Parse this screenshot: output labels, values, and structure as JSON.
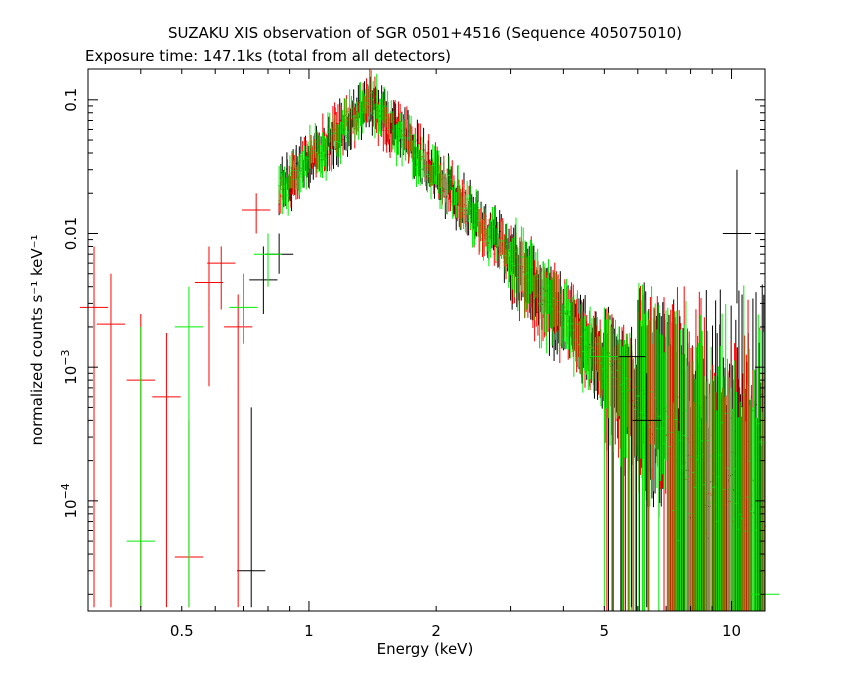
{
  "chart_data": {
    "type": "scatter",
    "title": "SUZAKU XIS observation of SGR 0501+4516 (Sequence 405075010)",
    "subtitle": "Exposure time: 147.1ks (total from all detectors)",
    "xlabel": "Energy (keV)",
    "ylabel": "normalized counts s⁻¹ keV⁻¹",
    "xscale": "log",
    "yscale": "log",
    "xlim": [
      0.3,
      12.0
    ],
    "ylim": [
      1.5e-05,
      0.17
    ],
    "grid": false,
    "legend": "none",
    "x_ticks": [
      {
        "value": 0.5,
        "label": "0.5"
      },
      {
        "value": 1,
        "label": "1"
      },
      {
        "value": 2,
        "label": "2"
      },
      {
        "value": 5,
        "label": "5"
      },
      {
        "value": 10,
        "label": "10"
      }
    ],
    "y_ticks": [
      {
        "value": 0.0001,
        "mant": "10",
        "exp": "−4"
      },
      {
        "value": 0.001,
        "mant": "10",
        "exp": "−3"
      },
      {
        "value": 0.01,
        "mant": "0.01",
        "exp": ""
      },
      {
        "value": 0.1,
        "mant": "0.1",
        "exp": ""
      }
    ],
    "model": {
      "peak_energy_kev": 1.4,
      "peak_counts": 0.095,
      "low_energy_slope": 3.0,
      "high_energy_slope": 3.5
    },
    "series": [
      {
        "color": "#000000",
        "points": [
          {
            "x": 0.73,
            "y": 3e-05,
            "ylo": 1.6e-05,
            "yhi": 0.0005
          },
          {
            "x": 0.78,
            "y": 0.0045,
            "ylo": 0.0025,
            "yhi": 0.008
          },
          {
            "x": 0.85,
            "y": 0.007,
            "ylo": 0.005,
            "yhi": 0.01
          },
          {
            "x": 5.8,
            "y": 0.0012,
            "ylo": 1.6e-05,
            "yhi": 0.002
          },
          {
            "x": 6.3,
            "y": 0.0004,
            "ylo": 1.6e-05,
            "yhi": 0.0009
          },
          {
            "x": 10.3,
            "y": 0.01,
            "ylo": 0.003,
            "yhi": 0.03
          }
        ]
      },
      {
        "color": "#ff0000",
        "points": [
          {
            "x": 0.31,
            "y": 0.0028,
            "ylo": 1.6e-05,
            "yhi": 0.008
          },
          {
            "x": 0.34,
            "y": 0.0021,
            "ylo": 1.6e-05,
            "yhi": 0.005
          },
          {
            "x": 0.4,
            "y": 0.0008,
            "ylo": 1.6e-05,
            "yhi": 0.0025
          },
          {
            "x": 0.46,
            "y": 0.0006,
            "ylo": 1.6e-05,
            "yhi": 0.0018
          },
          {
            "x": 0.52,
            "y": 3.8e-05,
            "ylo": 1.6e-05,
            "yhi": 0.0004
          },
          {
            "x": 0.58,
            "y": 0.0043,
            "ylo": 0.00072,
            "yhi": 0.008
          },
          {
            "x": 0.62,
            "y": 0.006,
            "ylo": 0.0027,
            "yhi": 0.008
          },
          {
            "x": 0.68,
            "y": 0.002,
            "ylo": 1.6e-05,
            "yhi": 0.0035
          },
          {
            "x": 0.75,
            "y": 0.015,
            "ylo": 0.01,
            "yhi": 0.02
          }
        ]
      },
      {
        "color": "#00ee00",
        "points": [
          {
            "x": 0.4,
            "y": 5e-05,
            "ylo": 1.6e-05,
            "yhi": 0.002
          },
          {
            "x": 0.52,
            "y": 0.002,
            "ylo": 1.6e-05,
            "yhi": 0.004
          },
          {
            "x": 0.7,
            "y": 0.0028,
            "ylo": 0.0015,
            "yhi": 0.005
          },
          {
            "x": 0.8,
            "y": 0.007,
            "ylo": 0.004,
            "yhi": 0.01
          },
          {
            "x": 5.0,
            "y": 0.0012,
            "ylo": 1.6e-05,
            "yhi": 0.0028
          },
          {
            "x": 12.0,
            "y": 2e-05,
            "ylo": 1.6e-05,
            "yhi": 0.005
          }
        ]
      }
    ]
  }
}
